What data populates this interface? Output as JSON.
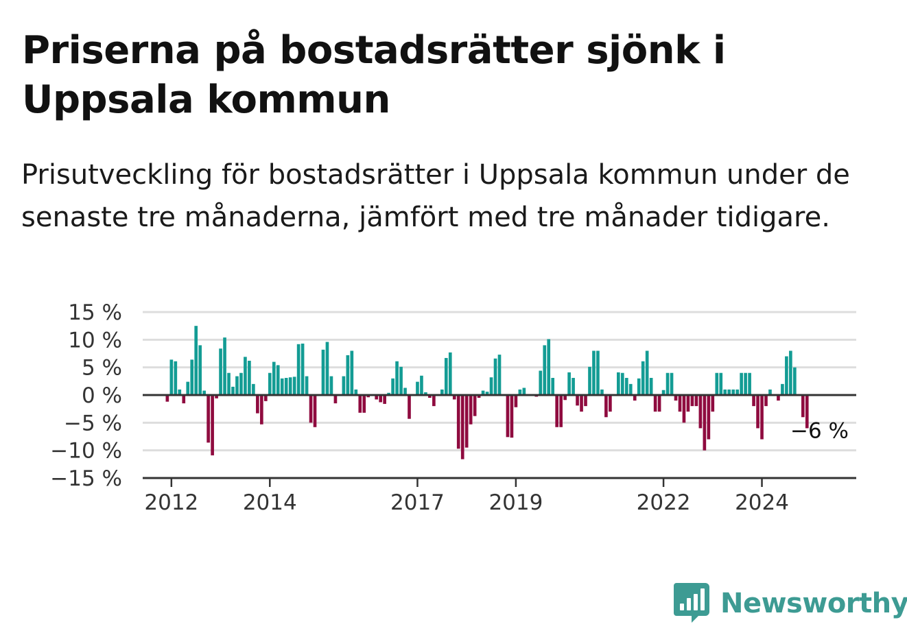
{
  "title": "Priserna på bostadsrätter sjönk i Uppsala kommun",
  "subtitle": "Prisutveckling för bostadsrätter i Uppsala kommun under de senaste tre månaderna, jämfört med tre månader tidigare.",
  "brand": {
    "name": "Newsworthy",
    "color": "#3d9b93"
  },
  "colors": {
    "positive": "#139c94",
    "negative": "#8f0b3f",
    "grid": "#dddddd",
    "axis": "#333333"
  },
  "chart_data": {
    "type": "bar",
    "title": "Priserna på bostadsrätter sjönk i Uppsala kommun",
    "xlabel": "",
    "ylabel": "",
    "x_range": [
      "2011-06",
      "2025-12"
    ],
    "ylim": [
      -15,
      15
    ],
    "y_ticks": [
      15,
      10,
      5,
      0,
      -5,
      -10,
      -15
    ],
    "y_tick_labels": [
      "15 %",
      "10 %",
      "5 %",
      "0 %",
      "−5 %",
      "−10 %",
      "−15 %"
    ],
    "x_tick_labels": [
      "2012",
      "2014",
      "2017",
      "2019",
      "2022",
      "2024"
    ],
    "grid": true,
    "last_value_label": "−6 %",
    "series": [
      {
        "values": [
          {
            "x": "2011-12",
            "y": -1.2
          },
          {
            "x": "2012-01",
            "y": 6.4
          },
          {
            "x": "2012-02",
            "y": 6.1
          },
          {
            "x": "2012-03",
            "y": 1.0
          },
          {
            "x": "2012-04",
            "y": -1.5
          },
          {
            "x": "2012-05",
            "y": 2.4
          },
          {
            "x": "2012-06",
            "y": 6.4
          },
          {
            "x": "2012-07",
            "y": 12.5
          },
          {
            "x": "2012-08",
            "y": 9.0
          },
          {
            "x": "2012-09",
            "y": 0.8
          },
          {
            "x": "2012-10",
            "y": -8.6
          },
          {
            "x": "2012-11",
            "y": -10.9
          },
          {
            "x": "2012-12",
            "y": -0.6
          },
          {
            "x": "2013-01",
            "y": 8.4
          },
          {
            "x": "2013-02",
            "y": 10.4
          },
          {
            "x": "2013-03",
            "y": 4.0
          },
          {
            "x": "2013-04",
            "y": 1.5
          },
          {
            "x": "2013-05",
            "y": 3.4
          },
          {
            "x": "2013-06",
            "y": 4.0
          },
          {
            "x": "2013-07",
            "y": 6.9
          },
          {
            "x": "2013-08",
            "y": 6.2
          },
          {
            "x": "2013-09",
            "y": 2.0
          },
          {
            "x": "2013-10",
            "y": -3.3
          },
          {
            "x": "2013-11",
            "y": -5.3
          },
          {
            "x": "2013-12",
            "y": -1.1
          },
          {
            "x": "2014-01",
            "y": 4.0
          },
          {
            "x": "2014-02",
            "y": 6.0
          },
          {
            "x": "2014-03",
            "y": 5.4
          },
          {
            "x": "2014-04",
            "y": 3.0
          },
          {
            "x": "2014-05",
            "y": 3.1
          },
          {
            "x": "2014-06",
            "y": 3.2
          },
          {
            "x": "2014-07",
            "y": 3.3
          },
          {
            "x": "2014-08",
            "y": 9.2
          },
          {
            "x": "2014-09",
            "y": 9.3
          },
          {
            "x": "2014-10",
            "y": 3.4
          },
          {
            "x": "2014-11",
            "y": -5.0
          },
          {
            "x": "2014-12",
            "y": -5.8
          },
          {
            "x": "2015-02",
            "y": 8.2
          },
          {
            "x": "2015-03",
            "y": 9.6
          },
          {
            "x": "2015-04",
            "y": 3.4
          },
          {
            "x": "2015-05",
            "y": -1.5
          },
          {
            "x": "2015-07",
            "y": 3.4
          },
          {
            "x": "2015-08",
            "y": 7.2
          },
          {
            "x": "2015-09",
            "y": 8.0
          },
          {
            "x": "2015-10",
            "y": 1.0
          },
          {
            "x": "2015-11",
            "y": -3.2
          },
          {
            "x": "2015-12",
            "y": -3.2
          },
          {
            "x": "2016-01",
            "y": -0.4
          },
          {
            "x": "2016-03",
            "y": -0.8
          },
          {
            "x": "2016-04",
            "y": -1.3
          },
          {
            "x": "2016-05",
            "y": -1.6
          },
          {
            "x": "2016-06",
            "y": 0.4
          },
          {
            "x": "2016-07",
            "y": 3.0
          },
          {
            "x": "2016-08",
            "y": 6.1
          },
          {
            "x": "2016-09",
            "y": 5.1
          },
          {
            "x": "2016-10",
            "y": 1.3
          },
          {
            "x": "2016-11",
            "y": -4.3
          },
          {
            "x": "2017-01",
            "y": 2.4
          },
          {
            "x": "2017-02",
            "y": 3.5
          },
          {
            "x": "2017-03",
            "y": 0.5
          },
          {
            "x": "2017-04",
            "y": -0.5
          },
          {
            "x": "2017-05",
            "y": -2.0
          },
          {
            "x": "2017-07",
            "y": 1.0
          },
          {
            "x": "2017-08",
            "y": 6.7
          },
          {
            "x": "2017-09",
            "y": 7.7
          },
          {
            "x": "2017-10",
            "y": -0.8
          },
          {
            "x": "2017-11",
            "y": -9.7
          },
          {
            "x": "2017-12",
            "y": -11.6
          },
          {
            "x": "2018-01",
            "y": -9.5
          },
          {
            "x": "2018-02",
            "y": -5.3
          },
          {
            "x": "2018-03",
            "y": -3.8
          },
          {
            "x": "2018-04",
            "y": -0.5
          },
          {
            "x": "2018-05",
            "y": 0.8
          },
          {
            "x": "2018-06",
            "y": 0.6
          },
          {
            "x": "2018-07",
            "y": 3.2
          },
          {
            "x": "2018-08",
            "y": 6.6
          },
          {
            "x": "2018-09",
            "y": 7.3
          },
          {
            "x": "2018-11",
            "y": -7.6
          },
          {
            "x": "2018-12",
            "y": -7.7
          },
          {
            "x": "2019-01",
            "y": -2.2
          },
          {
            "x": "2019-02",
            "y": 1.0
          },
          {
            "x": "2019-03",
            "y": 1.3
          },
          {
            "x": "2019-06",
            "y": -0.3
          },
          {
            "x": "2019-07",
            "y": 4.4
          },
          {
            "x": "2019-08",
            "y": 9.0
          },
          {
            "x": "2019-09",
            "y": 10.1
          },
          {
            "x": "2019-10",
            "y": 3.1
          },
          {
            "x": "2019-11",
            "y": -5.8
          },
          {
            "x": "2019-12",
            "y": -5.8
          },
          {
            "x": "2020-01",
            "y": -0.9
          },
          {
            "x": "2020-02",
            "y": 4.1
          },
          {
            "x": "2020-03",
            "y": 3.1
          },
          {
            "x": "2020-04",
            "y": -1.9
          },
          {
            "x": "2020-05",
            "y": -3.0
          },
          {
            "x": "2020-06",
            "y": -2.0
          },
          {
            "x": "2020-07",
            "y": 5.1
          },
          {
            "x": "2020-08",
            "y": 8.0
          },
          {
            "x": "2020-09",
            "y": 8.0
          },
          {
            "x": "2020-10",
            "y": 1.0
          },
          {
            "x": "2020-11",
            "y": -4.0
          },
          {
            "x": "2020-12",
            "y": -3.0
          },
          {
            "x": "2021-02",
            "y": 4.1
          },
          {
            "x": "2021-03",
            "y": 4.0
          },
          {
            "x": "2021-04",
            "y": 3.1
          },
          {
            "x": "2021-05",
            "y": 2.0
          },
          {
            "x": "2021-06",
            "y": -1.0
          },
          {
            "x": "2021-07",
            "y": 3.0
          },
          {
            "x": "2021-08",
            "y": 6.1
          },
          {
            "x": "2021-09",
            "y": 8.0
          },
          {
            "x": "2021-10",
            "y": 3.1
          },
          {
            "x": "2021-11",
            "y": -3.0
          },
          {
            "x": "2021-12",
            "y": -3.0
          },
          {
            "x": "2022-01",
            "y": 0.9
          },
          {
            "x": "2022-02",
            "y": 4.0
          },
          {
            "x": "2022-03",
            "y": 4.0
          },
          {
            "x": "2022-04",
            "y": -1.0
          },
          {
            "x": "2022-05",
            "y": -3.0
          },
          {
            "x": "2022-06",
            "y": -5.0
          },
          {
            "x": "2022-07",
            "y": -3.0
          },
          {
            "x": "2022-08",
            "y": -2.0
          },
          {
            "x": "2022-09",
            "y": -2.0
          },
          {
            "x": "2022-10",
            "y": -6.0
          },
          {
            "x": "2022-11",
            "y": -10.0
          },
          {
            "x": "2022-12",
            "y": -8.0
          },
          {
            "x": "2023-01",
            "y": -3.0
          },
          {
            "x": "2023-02",
            "y": 4.0
          },
          {
            "x": "2023-03",
            "y": 4.0
          },
          {
            "x": "2023-04",
            "y": 1.0
          },
          {
            "x": "2023-05",
            "y": 1.0
          },
          {
            "x": "2023-06",
            "y": 1.0
          },
          {
            "x": "2023-07",
            "y": 1.0
          },
          {
            "x": "2023-08",
            "y": 4.0
          },
          {
            "x": "2023-09",
            "y": 4.0
          },
          {
            "x": "2023-10",
            "y": 4.0
          },
          {
            "x": "2023-11",
            "y": -2.0
          },
          {
            "x": "2023-12",
            "y": -6.0
          },
          {
            "x": "2024-01",
            "y": -8.0
          },
          {
            "x": "2024-02",
            "y": -2.0
          },
          {
            "x": "2024-03",
            "y": 1.0
          },
          {
            "x": "2024-05",
            "y": -1.0
          },
          {
            "x": "2024-06",
            "y": 2.0
          },
          {
            "x": "2024-07",
            "y": 7.0
          },
          {
            "x": "2024-08",
            "y": 8.0
          },
          {
            "x": "2024-09",
            "y": 5.0
          },
          {
            "x": "2024-11",
            "y": -4.0
          },
          {
            "x": "2024-12",
            "y": -6.0
          }
        ]
      }
    ]
  }
}
